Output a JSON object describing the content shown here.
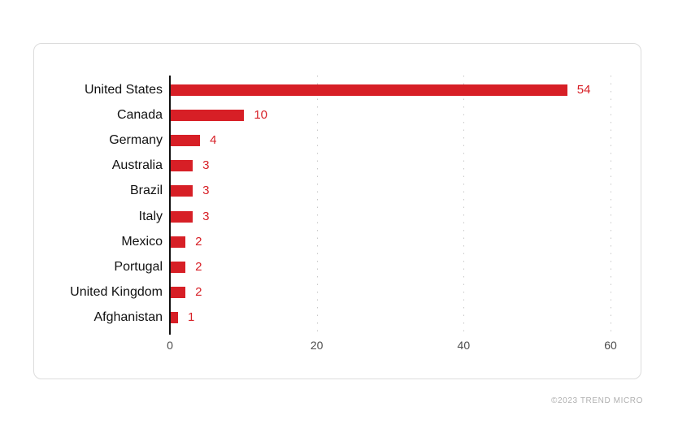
{
  "chart_data": {
    "type": "bar",
    "orientation": "horizontal",
    "title": "",
    "xlabel": "",
    "ylabel": "",
    "categories": [
      "United States",
      "Canada",
      "Germany",
      "Australia",
      "Brazil",
      "Italy",
      "Mexico",
      "Portugal",
      "United Kingdom",
      "Afghanistan"
    ],
    "values": [
      54,
      10,
      4,
      3,
      3,
      3,
      2,
      2,
      2,
      1
    ],
    "xlim": [
      0,
      60
    ],
    "x_ticks": [
      0,
      20,
      40,
      60
    ],
    "grid": "vertical-dotted-at-20-40-60",
    "legend": "none",
    "colors": {
      "bar": "#d71f26",
      "value_label": "#d71f26",
      "category_label": "#111111",
      "tick_label": "#4d4d4d",
      "axis_line": "#111111",
      "gridline": "#c9c9c9"
    }
  },
  "footer": {
    "copyright": "©2023 TREND MICRO"
  }
}
